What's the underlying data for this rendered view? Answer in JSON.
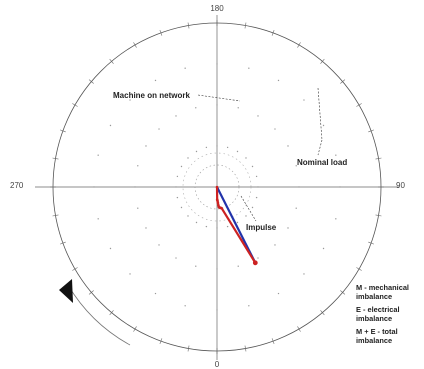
{
  "chart_data": {
    "type": "polar",
    "angle_labels": [
      "180",
      "90",
      "0",
      "270"
    ],
    "legend_items": [
      "M - mechanical imbalance",
      "E - electrical imbalance",
      "M + E - total imbalance"
    ],
    "annotations": [
      {
        "text": "Machine on network",
        "point": "mid"
      },
      {
        "text": "Nominal load",
        "point": "tip"
      },
      {
        "text": "Impulse",
        "point": "origin"
      }
    ],
    "series": [
      {
        "color": "#cc2222",
        "points": [
          [
            0.0,
            0.0
          ],
          [
            7.7,
            0.8
          ],
          [
            7.8,
            1.4
          ],
          [
            8.5,
            2.2
          ],
          [
            9.6,
            3.2
          ],
          [
            11.2,
            4.4
          ],
          [
            12.3,
            5.6
          ],
          [
            12.4,
            6.6
          ],
          [
            12.8,
            8.3
          ],
          [
            13.0,
            10.6
          ],
          [
            13.2,
            12.4
          ],
          [
            51.8,
            26.8
          ]
        ]
      },
      {
        "color": "#2233aa",
        "points": [
          [
            0.0,
            0.0
          ],
          [
            51.8,
            26.8
          ]
        ]
      }
    ],
    "rlim": [
      0,
      100
    ]
  },
  "colors": {
    "mechanical": "#cc2222",
    "total": "#2233aa",
    "grid": "#555555"
  }
}
